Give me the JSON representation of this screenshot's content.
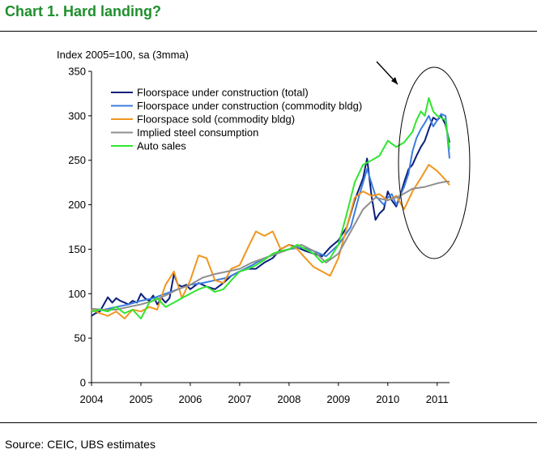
{
  "page": {
    "title": "Chart 1. Hard landing?",
    "source": "Source: CEIC, UBS estimates"
  },
  "chart_data": {
    "type": "line",
    "title": "Chart 1. Hard landing?",
    "ylabel": "Index 2005=100, sa (3mma)",
    "xlabel": "",
    "ylim": [
      0,
      350
    ],
    "xlim": [
      2004,
      2011.25
    ],
    "yticks": [
      0,
      50,
      100,
      150,
      200,
      250,
      300,
      350
    ],
    "xticks": [
      2004,
      2005,
      2006,
      2007,
      2008,
      2009,
      2010,
      2011
    ],
    "grid": false,
    "legend": "top-left",
    "annotation": "arrow and ellipse highlighting 2010-2011 peak",
    "series": [
      {
        "name": "Floorspace under construction (total)",
        "color": "#0a1e7a",
        "x": [
          2004.0,
          2004.08,
          2004.17,
          2004.25,
          2004.33,
          2004.42,
          2004.5,
          2004.58,
          2004.67,
          2004.75,
          2004.83,
          2004.92,
          2005.0,
          2005.08,
          2005.17,
          2005.25,
          2005.33,
          2005.42,
          2005.5,
          2005.58,
          2005.67,
          2005.75,
          2005.83,
          2005.92,
          2006.0,
          2006.17,
          2006.33,
          2006.5,
          2006.67,
          2006.83,
          2007.0,
          2007.17,
          2007.33,
          2007.5,
          2007.67,
          2007.83,
          2008.0,
          2008.17,
          2008.33,
          2008.5,
          2008.67,
          2008.83,
          2009.0,
          2009.17,
          2009.33,
          2009.5,
          2009.58,
          2009.67,
          2009.75,
          2009.83,
          2009.92,
          2010.0,
          2010.08,
          2010.17,
          2010.25,
          2010.33,
          2010.42,
          2010.5,
          2010.58,
          2010.67,
          2010.75,
          2010.83,
          2010.92,
          2011.0,
          2011.08,
          2011.17,
          2011.25
        ],
        "values": [
          75,
          78,
          80,
          88,
          96,
          90,
          95,
          92,
          90,
          88,
          92,
          90,
          100,
          95,
          92,
          98,
          88,
          95,
          90,
          95,
          122,
          110,
          108,
          110,
          105,
          112,
          108,
          105,
          112,
          120,
          125,
          128,
          128,
          135,
          140,
          150,
          155,
          152,
          148,
          145,
          142,
          152,
          160,
          175,
          205,
          230,
          252,
          210,
          183,
          190,
          195,
          215,
          205,
          198,
          210,
          225,
          240,
          245,
          255,
          265,
          272,
          285,
          298,
          295,
          300,
          290,
          270
        ]
      },
      {
        "name": "Floorspace under construction (commodity bldg)",
        "color": "#3d7de0",
        "x": [
          2004.0,
          2004.25,
          2004.5,
          2004.75,
          2005.0,
          2005.25,
          2005.5,
          2005.75,
          2006.0,
          2006.25,
          2006.5,
          2006.75,
          2007.0,
          2007.25,
          2007.5,
          2007.75,
          2008.0,
          2008.25,
          2008.5,
          2008.75,
          2009.0,
          2009.25,
          2009.42,
          2009.58,
          2009.75,
          2009.92,
          2010.0,
          2010.08,
          2010.17,
          2010.33,
          2010.42,
          2010.5,
          2010.58,
          2010.67,
          2010.75,
          2010.83,
          2010.92,
          2011.0,
          2011.08,
          2011.17,
          2011.25
        ],
        "values": [
          80,
          82,
          85,
          88,
          92,
          95,
          100,
          105,
          110,
          112,
          115,
          118,
          125,
          132,
          140,
          145,
          150,
          152,
          148,
          142,
          155,
          175,
          210,
          240,
          210,
          200,
          208,
          212,
          200,
          220,
          235,
          260,
          275,
          285,
          292,
          300,
          288,
          295,
          302,
          300,
          252
        ]
      },
      {
        "name": "Floorspace sold (commodity bldg)",
        "color": "#f0961e",
        "x": [
          2004.0,
          2004.17,
          2004.33,
          2004.5,
          2004.67,
          2004.83,
          2005.0,
          2005.17,
          2005.33,
          2005.5,
          2005.67,
          2005.83,
          2006.0,
          2006.17,
          2006.33,
          2006.5,
          2006.67,
          2006.83,
          2007.0,
          2007.17,
          2007.33,
          2007.5,
          2007.67,
          2007.83,
          2008.0,
          2008.17,
          2008.33,
          2008.5,
          2008.67,
          2008.83,
          2009.0,
          2009.17,
          2009.33,
          2009.5,
          2009.67,
          2009.83,
          2010.0,
          2010.17,
          2010.33,
          2010.5,
          2010.67,
          2010.83,
          2011.0,
          2011.17,
          2011.25
        ],
        "values": [
          82,
          78,
          75,
          80,
          72,
          82,
          80,
          85,
          82,
          110,
          125,
          95,
          115,
          143,
          140,
          115,
          112,
          128,
          132,
          152,
          170,
          165,
          170,
          150,
          155,
          150,
          140,
          130,
          125,
          120,
          140,
          175,
          208,
          215,
          210,
          212,
          205,
          210,
          195,
          215,
          230,
          245,
          238,
          228,
          222
        ]
      },
      {
        "name": "Implied steel consumption",
        "color": "#8f8f8f",
        "x": [
          2004.0,
          2004.25,
          2004.5,
          2004.75,
          2005.0,
          2005.25,
          2005.5,
          2005.75,
          2006.0,
          2006.25,
          2006.5,
          2006.75,
          2007.0,
          2007.25,
          2007.5,
          2007.75,
          2008.0,
          2008.25,
          2008.5,
          2008.75,
          2009.0,
          2009.25,
          2009.5,
          2009.75,
          2010.0,
          2010.25,
          2010.5,
          2010.75,
          2011.0,
          2011.17,
          2011.25
        ],
        "values": [
          83,
          82,
          82,
          85,
          88,
          92,
          98,
          105,
          110,
          118,
          122,
          125,
          128,
          135,
          140,
          145,
          150,
          155,
          148,
          135,
          145,
          170,
          195,
          208,
          205,
          210,
          218,
          220,
          224,
          226,
          226
        ]
      },
      {
        "name": "Auto sales",
        "color": "#2ee62e",
        "x": [
          2004.0,
          2004.17,
          2004.33,
          2004.5,
          2004.67,
          2004.83,
          2005.0,
          2005.17,
          2005.33,
          2005.5,
          2005.67,
          2005.83,
          2006.0,
          2006.17,
          2006.33,
          2006.5,
          2006.67,
          2006.83,
          2007.0,
          2007.17,
          2007.33,
          2007.5,
          2007.67,
          2007.83,
          2008.0,
          2008.17,
          2008.33,
          2008.5,
          2008.67,
          2008.83,
          2009.0,
          2009.17,
          2009.33,
          2009.5,
          2009.67,
          2009.83,
          2010.0,
          2010.17,
          2010.33,
          2010.5,
          2010.58,
          2010.67,
          2010.75,
          2010.83,
          2010.92,
          2011.0,
          2011.08,
          2011.17,
          2011.25
        ],
        "values": [
          80,
          82,
          80,
          85,
          78,
          82,
          72,
          90,
          95,
          85,
          90,
          95,
          100,
          105,
          108,
          102,
          105,
          115,
          125,
          128,
          132,
          138,
          145,
          148,
          150,
          155,
          150,
          145,
          135,
          140,
          155,
          190,
          225,
          245,
          250,
          255,
          272,
          265,
          270,
          282,
          295,
          305,
          300,
          320,
          305,
          300,
          298,
          295,
          262
        ]
      }
    ]
  }
}
